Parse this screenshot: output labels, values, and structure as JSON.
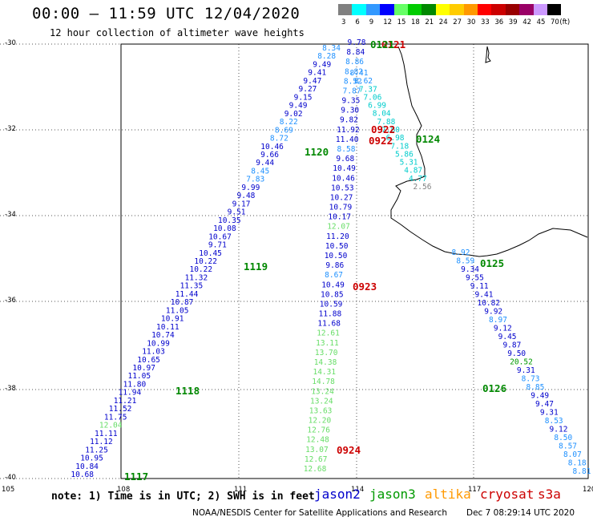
{
  "header": {
    "title": "00:00 – 11:59 UTC 12/04/2020",
    "subtitle": "12 hour collection of altimeter wave heights"
  },
  "legend": {
    "unit": "(ft)",
    "bins": [
      {
        "label": "3",
        "color": "#808080"
      },
      {
        "label": "6",
        "color": "#00ffff"
      },
      {
        "label": "9",
        "color": "#3399ff"
      },
      {
        "label": "12",
        "color": "#0000ff"
      },
      {
        "label": "15",
        "color": "#66ff66"
      },
      {
        "label": "18",
        "color": "#00cc00"
      },
      {
        "label": "21",
        "color": "#008800"
      },
      {
        "label": "24",
        "color": "#ffff00"
      },
      {
        "label": "27",
        "color": "#ffcc00"
      },
      {
        "label": "30",
        "color": "#ff9900"
      },
      {
        "label": "33",
        "color": "#ff0000"
      },
      {
        "label": "36",
        "color": "#cc0000"
      },
      {
        "label": "39",
        "color": "#990000"
      },
      {
        "label": "42",
        "color": "#990066"
      },
      {
        "label": "45",
        "color": "#cc99ff"
      },
      {
        "label": "70",
        "color": "#000000"
      }
    ]
  },
  "axes": {
    "lat_labels": [
      "-30",
      "-32",
      "-34",
      "-36",
      "-38",
      "-40"
    ],
    "lon_labels": [
      "105",
      "108",
      "111",
      "114",
      "117",
      "120"
    ]
  },
  "tracks": [
    {
      "id": "track-west",
      "values": [
        "8.34",
        "8.28",
        "9.49",
        "9.41",
        "9.47",
        "9.27",
        "9.15",
        "9.49",
        "9.02",
        "8.22",
        "8.69",
        "8.72",
        "10.46",
        "9.66",
        "9.44",
        "8.45",
        "7.83",
        "9.99",
        "9.48",
        "9.17",
        "9.51",
        "10.35",
        "10.08",
        "10.67",
        "9.71",
        "10.45",
        "10.22",
        "10.22",
        "11.32",
        "11.35",
        "11.44",
        "10.87",
        "11.05",
        "10.91",
        "10.11",
        "10.74",
        "10.99",
        "11.03",
        "10.65",
        "10.97",
        "11.05",
        "11.80",
        "11.94",
        "11.21",
        "11.52",
        "11.75",
        "12.04",
        "11.11",
        "11.12",
        "11.25",
        "10.95",
        "10.84",
        "10.68"
      ],
      "colors": [
        "#1e90ff",
        "#1e90ff",
        "#0000cc",
        "#0000cc",
        "#0000cc",
        "#0000cc",
        "#0000cc",
        "#0000cc",
        "#0000cc",
        "#1e90ff",
        "#1e90ff",
        "#1e90ff",
        "#0000cc",
        "#0000cc",
        "#0000cc",
        "#1e90ff",
        "#1e90ff",
        "#0000cc",
        "#0000cc",
        "#0000cc",
        "#0000cc",
        "#0000cc",
        "#0000cc",
        "#0000cc",
        "#0000cc",
        "#0000cc",
        "#0000cc",
        "#0000cc",
        "#0000cc",
        "#0000cc",
        "#0000cc",
        "#0000cc",
        "#0000cc",
        "#0000cc",
        "#0000cc",
        "#0000cc",
        "#0000cc",
        "#0000cc",
        "#0000cc",
        "#0000cc",
        "#0000cc",
        "#0000cc",
        "#0000cc",
        "#0000cc",
        "#0000cc",
        "#0000cc",
        "#66dd66",
        "#0000cc",
        "#0000cc",
        "#0000cc",
        "#0000cc",
        "#0000cc",
        "#0000cc"
      ]
    },
    {
      "id": "track-center",
      "values": [
        "9.78",
        "8.84",
        "8.86",
        "8.82",
        "8.52",
        "7.87",
        "9.35",
        "9.30",
        "9.82",
        "11.92",
        "11.40",
        "8.58",
        "9.68",
        "10.49",
        "10.46",
        "10.53",
        "10.27",
        "10.79",
        "10.17",
        "12.07",
        "11.20",
        "10.50",
        "10.50",
        "9.86",
        "8.67",
        "10.49",
        "10.85",
        "10.59",
        "11.88",
        "11.68",
        "12.61",
        "13.11",
        "13.70",
        "14.38",
        "14.31",
        "14.78",
        "13.24",
        "13.24",
        "13.63",
        "12.20",
        "12.76",
        "12.48",
        "13.07",
        "12.67",
        "12.68"
      ],
      "colors": [
        "#0000cc",
        "#0000cc",
        "#1e90ff",
        "#1e90ff",
        "#1e90ff",
        "#1e90ff",
        "#0000cc",
        "#0000cc",
        "#0000cc",
        "#0000cc",
        "#0000cc",
        "#1e90ff",
        "#0000cc",
        "#0000cc",
        "#0000cc",
        "#0000cc",
        "#0000cc",
        "#0000cc",
        "#0000cc",
        "#66dd66",
        "#0000cc",
        "#0000cc",
        "#0000cc",
        "#0000cc",
        "#1e90ff",
        "#0000cc",
        "#0000cc",
        "#0000cc",
        "#0000cc",
        "#0000cc",
        "#66dd66",
        "#66dd66",
        "#66dd66",
        "#66dd66",
        "#66dd66",
        "#66dd66",
        "#66dd66",
        "#66dd66",
        "#66dd66",
        "#66dd66",
        "#66dd66",
        "#66dd66",
        "#66dd66",
        "#66dd66",
        "#66dd66"
      ]
    },
    {
      "id": "track-coast",
      "values": [
        "8.41",
        "8.62",
        "7.37",
        "7.06",
        "6.99",
        "8.04",
        "7.88",
        "7.80",
        "6.98",
        "7.18",
        "5.86",
        "5.31",
        "4.87",
        "4.77",
        "2.56"
      ],
      "colors": [
        "#1e90ff",
        "#1e90ff",
        "#00cccc",
        "#00cccc",
        "#00cccc",
        "#00cccc",
        "#00cccc",
        "#00cccc",
        "#00cccc",
        "#00cccc",
        "#00cccc",
        "#00cccc",
        "#00cccc",
        "#00cccc",
        "#808080"
      ]
    },
    {
      "id": "track-east",
      "values": [
        "8.92",
        "8.59",
        "9.34",
        "9.55",
        "9.11",
        "9.41",
        "10.82",
        "9.92",
        "8.97",
        "9.12",
        "9.45",
        "9.87",
        "9.50",
        "20.52",
        "9.31",
        "8.73",
        "8.85",
        "9.49",
        "9.47",
        "9.31",
        "8.53",
        "9.12",
        "8.50",
        "8.57",
        "8.07",
        "8.18",
        "8.81"
      ],
      "colors": [
        "#1e90ff",
        "#1e90ff",
        "#0000cc",
        "#0000cc",
        "#0000cc",
        "#0000cc",
        "#0000cc",
        "#0000cc",
        "#1e90ff",
        "#0000cc",
        "#0000cc",
        "#0000cc",
        "#0000cc",
        "#009900",
        "#0000cc",
        "#1e90ff",
        "#1e90ff",
        "#0000cc",
        "#0000cc",
        "#0000cc",
        "#1e90ff",
        "#0000cc",
        "#1e90ff",
        "#1e90ff",
        "#1e90ff",
        "#1e90ff",
        "#1e90ff"
      ]
    }
  ],
  "time_labels": [
    {
      "text": "0121",
      "color": "#cc0000"
    },
    {
      "text": "0121",
      "color": "#008800"
    },
    {
      "text": "0922",
      "color": "#cc0000"
    },
    {
      "text": "0922",
      "color": "#cc0000"
    },
    {
      "text": "0124",
      "color": "#008800"
    },
    {
      "text": "1120",
      "color": "#008800"
    },
    {
      "text": "1119",
      "color": "#008800"
    },
    {
      "text": "0125",
      "color": "#008800"
    },
    {
      "text": "0923",
      "color": "#cc0000"
    },
    {
      "text": "1118",
      "color": "#008800"
    },
    {
      "text": "0126",
      "color": "#008800"
    },
    {
      "text": "0924",
      "color": "#cc0000"
    },
    {
      "text": "1117",
      "color": "#008800"
    }
  ],
  "footer": {
    "note": "note: 1) Time is in UTC; 2) SWH is in feet",
    "satellites": [
      {
        "name": "jason2",
        "color": "#0000cc"
      },
      {
        "name": "jason3",
        "color": "#009900"
      },
      {
        "name": "altika",
        "color": "#ff9900"
      },
      {
        "name": "cryosat",
        "color": "#cc0000"
      },
      {
        "name": "s3a",
        "color": "#cc0000"
      }
    ],
    "credit": "NOAA/NESDIS Center for Satellite Applications and Research",
    "timestamp": "Dec  7 08:29:14 UTC 2020"
  }
}
